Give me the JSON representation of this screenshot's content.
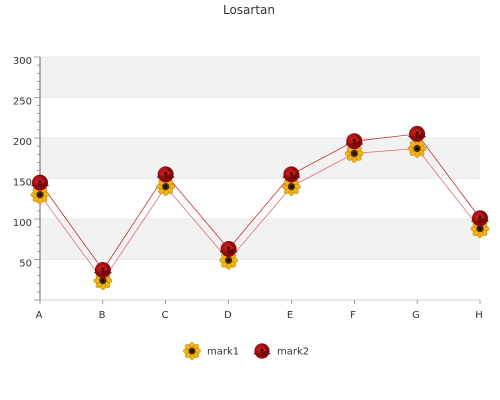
{
  "chart_data": {
    "type": "line",
    "title": "Losartan",
    "xlabel": "",
    "ylabel": "",
    "categories": [
      "A",
      "B",
      "C",
      "D",
      "E",
      "F",
      "G",
      "H"
    ],
    "y_ticks": [
      "50",
      "100",
      "150",
      "200",
      "250",
      "300"
    ],
    "ylim": [
      0,
      300
    ],
    "grid": true,
    "grid_style": "alternating horizontal bands",
    "legend_position": "bottom-center",
    "series": [
      {
        "name": "mark1",
        "marker": "sunflower-icon",
        "color": "#e07070",
        "values": [
          130,
          24,
          140,
          49,
          140,
          181,
          187,
          88
        ]
      },
      {
        "name": "mark2",
        "marker": "rose-icon",
        "color": "#c03030",
        "values": [
          145,
          37,
          155,
          63,
          155,
          196,
          205,
          101
        ]
      }
    ],
    "colors": {
      "band": "#f2f2f2",
      "grid": "#dddddd",
      "axis": "#666666"
    }
  }
}
